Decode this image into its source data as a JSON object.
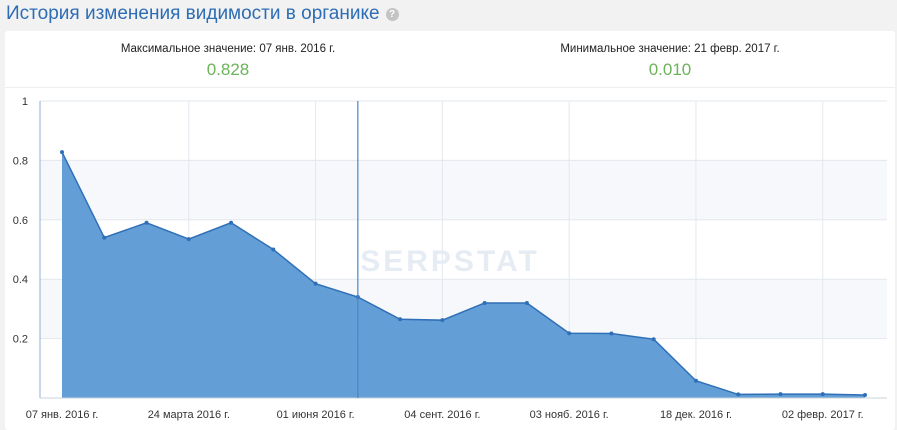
{
  "header": {
    "title": "История изменения видимости в органике",
    "help_icon": "question-circle-icon"
  },
  "stats": {
    "max": {
      "label": "Максимальное значение: 07 янв. 2016 г.",
      "value": "0.828"
    },
    "min": {
      "label": "Минимальное значение: 21 февр. 2017 г.",
      "value": "0.010"
    }
  },
  "watermark": "SERPSTAT",
  "chart_data": {
    "type": "area",
    "ylim": [
      0,
      1
    ],
    "y_ticks": [
      "0.2",
      "0.4",
      "0.6",
      "0.8",
      "1"
    ],
    "x_tick_labels": [
      {
        "index": 0,
        "label": "07 янв. 2016 г."
      },
      {
        "index": 3,
        "label": "24 марта 2016 г."
      },
      {
        "index": 6,
        "label": "01 июня 2016 г."
      },
      {
        "index": 9,
        "label": "04 сент. 2016 г."
      },
      {
        "index": 12,
        "label": "03 нояб. 2016 г."
      },
      {
        "index": 15,
        "label": "18 дек. 2016 г."
      },
      {
        "index": 18,
        "label": "02 февр. 2017 г."
      }
    ],
    "values": [
      0.828,
      0.54,
      0.59,
      0.535,
      0.59,
      0.5,
      0.385,
      0.34,
      0.265,
      0.262,
      0.32,
      0.32,
      0.218,
      0.217,
      0.198,
      0.058,
      0.012,
      0.013,
      0.013,
      0.01
    ],
    "cursor_index": 7,
    "grid": true,
    "colors": {
      "fill": "#5b9ad4",
      "line": "#2f6fb7",
      "band": "#f6f8fb",
      "grid": "#e3e8ee"
    }
  }
}
